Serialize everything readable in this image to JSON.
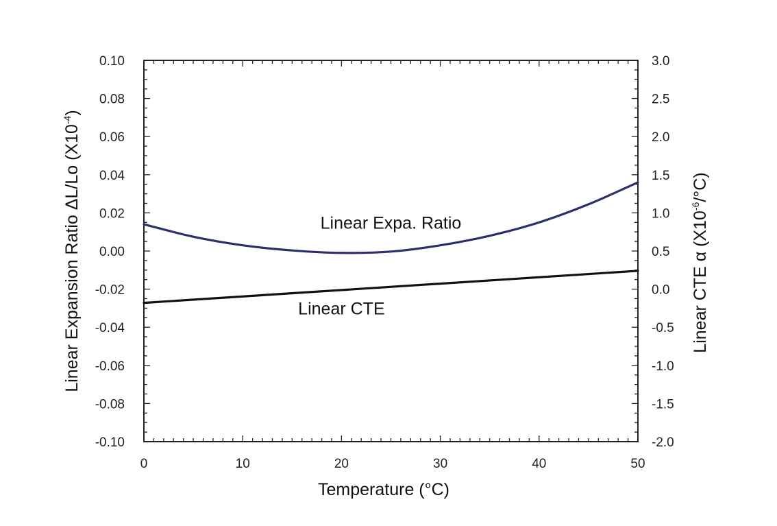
{
  "chart_data": {
    "type": "line",
    "xlabel": "Temperature (°C)",
    "ylabel_left": {
      "text": "Linear Expansion Ratio ΔL/Lo (X10",
      "sup": "-4",
      "tail": ")"
    },
    "ylabel_right": {
      "text": "Linear CTE α (X10",
      "sup": "-6",
      "tail": "/°C)"
    },
    "xlim": [
      0,
      50
    ],
    "ylim_left": [
      -0.1,
      0.1
    ],
    "ylim_right": [
      -2.0,
      3.0
    ],
    "x_ticks": [
      "0",
      "10",
      "20",
      "30",
      "40",
      "50"
    ],
    "y_left_ticks": [
      "0.10",
      "0.08",
      "0.06",
      "0.04",
      "0.02",
      "0.00",
      "-0.02",
      "-0.04",
      "-0.06",
      "-0.08",
      "-0.10"
    ],
    "y_right_ticks": [
      "3.0",
      "2.5",
      "2.0",
      "1.5",
      "1.0",
      "0.5",
      "0.0",
      "-0.5",
      "-1.0",
      "-1.5",
      "-2.0"
    ],
    "grid": false,
    "series": [
      {
        "name": "Linear Expa. Ratio",
        "axis": "left",
        "color": "#2b2f6b",
        "x": [
          0,
          5,
          10,
          15,
          20,
          25,
          30,
          35,
          40,
          45,
          50
        ],
        "y": [
          0.014,
          0.0075,
          0.003,
          0.0003,
          -0.001,
          -0.0003,
          0.003,
          0.008,
          0.015,
          0.0245,
          0.036
        ]
      },
      {
        "name": "Linear CTE",
        "axis": "right",
        "color": "#111111",
        "x": [
          0,
          50
        ],
        "y": [
          -0.18,
          0.24
        ]
      }
    ],
    "annotations": [
      {
        "text": "Linear Expa. Ratio",
        "x": 25,
        "y": 0.015,
        "axis": "left"
      },
      {
        "text": "Linear CTE",
        "x": 20,
        "y": -0.03,
        "axis": "left"
      }
    ]
  }
}
